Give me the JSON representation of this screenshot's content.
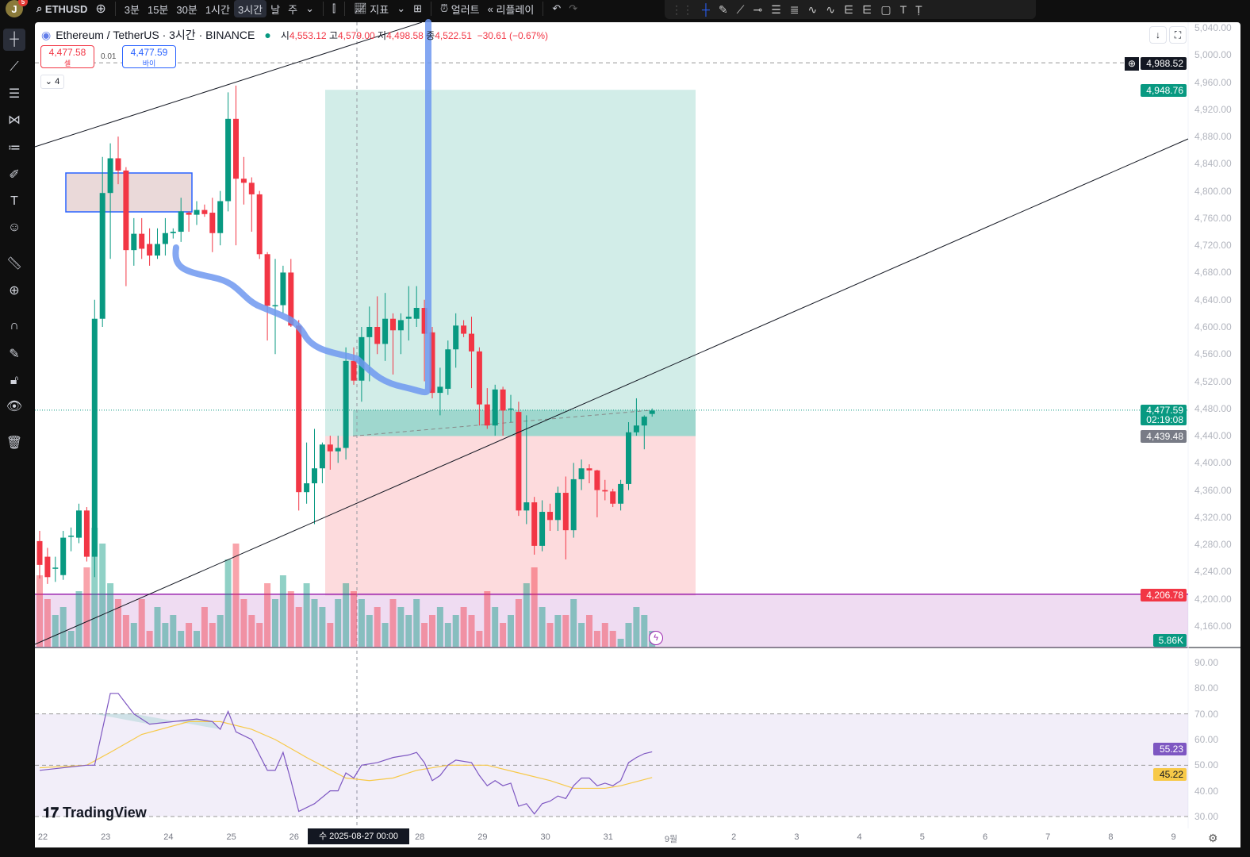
{
  "topbar": {
    "avatar": "J",
    "badge": "5",
    "symbol": "ETHUSD",
    "intervals": [
      "3분",
      "15분",
      "30분",
      "1시간",
      "3시간",
      "날",
      "주"
    ],
    "active_interval": "3시간",
    "indicators": "지표",
    "alerts": "얼러트",
    "replay": "리플레이"
  },
  "legend": {
    "title": "Ethereum / TetherUS · 3시간 · BINANCE",
    "o_label": "시",
    "o": "4,553.12",
    "h_label": "고",
    "h": "4,579.00",
    "l_label": "저",
    "l": "4,498.58",
    "c_label": "종",
    "c": "4,522.51",
    "change": "−30.61 (−0.67%)"
  },
  "trade": {
    "sell_price": "4,477.58",
    "sell_label": "셀",
    "spread": "0.01",
    "buy_price": "4,477.59",
    "buy_label": "바이",
    "collapse_count": "4"
  },
  "price_axis": {
    "ticks": [
      "5,040.00",
      "5,000.00",
      "4,960.00",
      "4,920.00",
      "4,880.00",
      "4,840.00",
      "4,800.00",
      "4,760.00",
      "4,720.00",
      "4,680.00",
      "4,640.00",
      "4,600.00",
      "4,560.00",
      "4,520.00",
      "4,480.00",
      "4,440.00",
      "4,400.00",
      "4,360.00",
      "4,320.00",
      "4,280.00",
      "4,240.00",
      "4,200.00",
      "4,160.00"
    ],
    "range": [
      4160,
      5040
    ]
  },
  "tags": {
    "alert_line": "4,988.52",
    "target": "4,948.76",
    "last": "4,477.59",
    "countdown": "02:19:08",
    "entry": "4,439.48",
    "stop_line": "4,206.78",
    "volume": "5.86K",
    "rsi": "55.23",
    "rsi_ma": "45.22"
  },
  "levels": {
    "alert_line": 4988.52,
    "target": 4948.76,
    "last": 4477.59,
    "entry": 4439.48,
    "stop_line": 4206.78,
    "stop": 4205
  },
  "rsi_axis": {
    "ticks": [
      "90.00",
      "80.00",
      "70.00",
      "60.00",
      "50.00",
      "40.00",
      "30.00"
    ],
    "range": [
      30,
      90
    ]
  },
  "time_axis": {
    "labels": [
      "22",
      "23",
      "24",
      "25",
      "26",
      "28",
      "29",
      "30",
      "31",
      "9월",
      "2",
      "3",
      "4",
      "5",
      "6",
      "7",
      "8",
      "9"
    ],
    "day_index": [
      0,
      1,
      2,
      3,
      4,
      6,
      7,
      8,
      9,
      10,
      11,
      12,
      13,
      14,
      15,
      16,
      17,
      18
    ],
    "crosshair": "수 2025-08-27   00:00"
  },
  "branding": "TradingView",
  "colors": {
    "up": "#089981",
    "down": "#f23645",
    "brush": "#6f98f0",
    "purple": "#9c27b0",
    "rsi": "#7e57c2",
    "rsi_ma": "#f7c948"
  },
  "candles": [
    [
      4285,
      4300,
      4230,
      4250
    ],
    [
      4262,
      4275,
      4222,
      4232
    ],
    [
      4245,
      4262,
      4225,
      4246
    ],
    [
      4235,
      4300,
      4228,
      4290
    ],
    [
      4292,
      4305,
      4270,
      4293
    ],
    [
      4290,
      4340,
      4282,
      4330
    ],
    [
      4330,
      4335,
      4255,
      4262
    ],
    [
      4262,
      4640,
      4232,
      4612
    ],
    [
      4612,
      4850,
      4600,
      4797
    ],
    [
      4797,
      4870,
      4700,
      4848
    ],
    [
      4848,
      4880,
      4810,
      4830
    ],
    [
      4830,
      4835,
      4660,
      4713
    ],
    [
      4713,
      4760,
      4690,
      4737
    ],
    [
      4737,
      4760,
      4700,
      4715
    ],
    [
      4722,
      4745,
      4690,
      4705
    ],
    [
      4705,
      4745,
      4700,
      4722
    ],
    [
      4722,
      4760,
      4705,
      4738
    ],
    [
      4738,
      4745,
      4730,
      4740
    ],
    [
      4740,
      4790,
      4725,
      4770
    ],
    [
      4768,
      4770,
      4740,
      4765
    ],
    [
      4765,
      4785,
      4750,
      4772
    ],
    [
      4772,
      4780,
      4762,
      4766
    ],
    [
      4768,
      4790,
      4710,
      4738
    ],
    [
      4738,
      4800,
      4720,
      4785
    ],
    [
      4785,
      4945,
      4770,
      4906
    ],
    [
      4906,
      4955,
      4720,
      4818
    ],
    [
      4818,
      4850,
      4780,
      4812
    ],
    [
      4812,
      4820,
      4740,
      4795
    ],
    [
      4795,
      4800,
      4700,
      4707
    ],
    [
      4707,
      4710,
      4580,
      4631
    ],
    [
      4631,
      4700,
      4560,
      4632
    ],
    [
      4632,
      4690,
      4620,
      4680
    ],
    [
      4680,
      4700,
      4600,
      4602
    ],
    [
      4602,
      4610,
      4330,
      4357
    ],
    [
      4357,
      4430,
      4340,
      4370
    ],
    [
      4370,
      4450,
      4310,
      4392
    ],
    [
      4392,
      4430,
      4370,
      4427
    ],
    [
      4427,
      4440,
      4390,
      4417
    ],
    [
      4417,
      4440,
      4400,
      4422
    ],
    [
      4422,
      4570,
      4405,
      4550
    ],
    [
      4550,
      4570,
      4515,
      4521
    ],
    [
      4521,
      4600,
      4490,
      4585
    ],
    [
      4585,
      4630,
      4520,
      4600
    ],
    [
      4600,
      4645,
      4560,
      4575
    ],
    [
      4575,
      4650,
      4550,
      4612
    ],
    [
      4612,
      4620,
      4530,
      4595
    ],
    [
      4595,
      4620,
      4560,
      4610
    ],
    [
      4612,
      4660,
      4580,
      4615
    ],
    [
      4612,
      4660,
      4600,
      4628
    ],
    [
      4628,
      4640,
      4520,
      4590
    ],
    [
      4592,
      4600,
      4495,
      4503
    ],
    [
      4503,
      4540,
      4470,
      4512
    ],
    [
      4509,
      4580,
      4500,
      4567
    ],
    [
      4567,
      4620,
      4540,
      4602
    ],
    [
      4602,
      4610,
      4585,
      4590
    ],
    [
      4590,
      4615,
      4510,
      4564
    ],
    [
      4564,
      4570,
      4455,
      4486
    ],
    [
      4486,
      4510,
      4450,
      4455
    ],
    [
      4455,
      4515,
      4440,
      4508
    ],
    [
      4508,
      4512,
      4440,
      4477
    ],
    [
      4479,
      4500,
      4460,
      4480
    ],
    [
      4475,
      4490,
      4322,
      4330
    ],
    [
      4330,
      4470,
      4310,
      4342
    ],
    [
      4342,
      4350,
      4265,
      4278
    ],
    [
      4278,
      4345,
      4270,
      4328
    ],
    [
      4328,
      4340,
      4300,
      4316
    ],
    [
      4316,
      4365,
      4300,
      4356
    ],
    [
      4356,
      4380,
      4258,
      4301
    ],
    [
      4301,
      4400,
      4290,
      4376
    ],
    [
      4376,
      4405,
      4360,
      4392
    ],
    [
      4392,
      4398,
      4370,
      4389
    ],
    [
      4389,
      4390,
      4320,
      4360
    ],
    [
      4360,
      4375,
      4345,
      4358
    ],
    [
      4358,
      4362,
      4335,
      4340
    ],
    [
      4340,
      4375,
      4330,
      4369
    ],
    [
      4369,
      4460,
      4360,
      4445
    ],
    [
      4445,
      4495,
      4440,
      4455
    ],
    [
      4455,
      4470,
      4420,
      4468
    ],
    [
      4472,
      4480,
      4468,
      4477
    ]
  ],
  "volumes": [
    9,
    6,
    4,
    5,
    2,
    7,
    10,
    15,
    13,
    8,
    6,
    4,
    3,
    6,
    2,
    5,
    3,
    4,
    2,
    3,
    2,
    5,
    3,
    4,
    11,
    13,
    6,
    4,
    3,
    8,
    6,
    9,
    7,
    5,
    8,
    6,
    5,
    3,
    6,
    8,
    7,
    6,
    4,
    5,
    3,
    6,
    5,
    4,
    6,
    3,
    4,
    5,
    3,
    4,
    5,
    4,
    2,
    7,
    5,
    3,
    4,
    6,
    8,
    10,
    5,
    3,
    4,
    4,
    6,
    3,
    4,
    2,
    3,
    2,
    1,
    3,
    5,
    4,
    2
  ],
  "rsi": [
    [
      0,
      48
    ],
    [
      6,
      50
    ],
    [
      7,
      50
    ],
    [
      9,
      78
    ],
    [
      10,
      78
    ],
    [
      11,
      74
    ],
    [
      12,
      70
    ],
    [
      14,
      66
    ],
    [
      17,
      67
    ],
    [
      20,
      68
    ],
    [
      22,
      67
    ],
    [
      23,
      64
    ],
    [
      24,
      71
    ],
    [
      25,
      63
    ],
    [
      27,
      60
    ],
    [
      29,
      48
    ],
    [
      30,
      48
    ],
    [
      31,
      55
    ],
    [
      32,
      44
    ],
    [
      33,
      32
    ],
    [
      35,
      35
    ],
    [
      37,
      40
    ],
    [
      38,
      40
    ],
    [
      39,
      47
    ],
    [
      40,
      45
    ],
    [
      41,
      50
    ],
    [
      43,
      51
    ],
    [
      45,
      53
    ],
    [
      47,
      54
    ],
    [
      48,
      55
    ],
    [
      49,
      51
    ],
    [
      50,
      44
    ],
    [
      51,
      46
    ],
    [
      52,
      50
    ],
    [
      53,
      52
    ],
    [
      55,
      51
    ],
    [
      56,
      46
    ],
    [
      57,
      42
    ],
    [
      58,
      44
    ],
    [
      59,
      42
    ],
    [
      60,
      43
    ],
    [
      61,
      34
    ],
    [
      62,
      35
    ],
    [
      63,
      31
    ],
    [
      64,
      35
    ],
    [
      65,
      36
    ],
    [
      66,
      38
    ],
    [
      67,
      37
    ],
    [
      68,
      42
    ],
    [
      69,
      45
    ],
    [
      70,
      45
    ],
    [
      71,
      42
    ],
    [
      72,
      43
    ],
    [
      73,
      42
    ],
    [
      74,
      44
    ],
    [
      75,
      51
    ],
    [
      76,
      53
    ],
    [
      77,
      54.5
    ],
    [
      78,
      55.23
    ]
  ],
  "rsi_ma": [
    [
      0,
      49
    ],
    [
      6,
      50
    ],
    [
      9,
      55
    ],
    [
      13,
      62
    ],
    [
      19,
      67
    ],
    [
      23,
      67
    ],
    [
      27,
      64
    ],
    [
      30,
      60
    ],
    [
      34,
      53
    ],
    [
      39,
      45
    ],
    [
      42,
      44
    ],
    [
      45,
      45
    ],
    [
      48,
      48
    ],
    [
      52,
      50
    ],
    [
      57,
      50
    ],
    [
      61,
      47
    ],
    [
      65,
      44
    ],
    [
      68,
      41
    ],
    [
      72,
      41
    ],
    [
      74,
      42
    ],
    [
      78,
      45.22
    ]
  ]
}
